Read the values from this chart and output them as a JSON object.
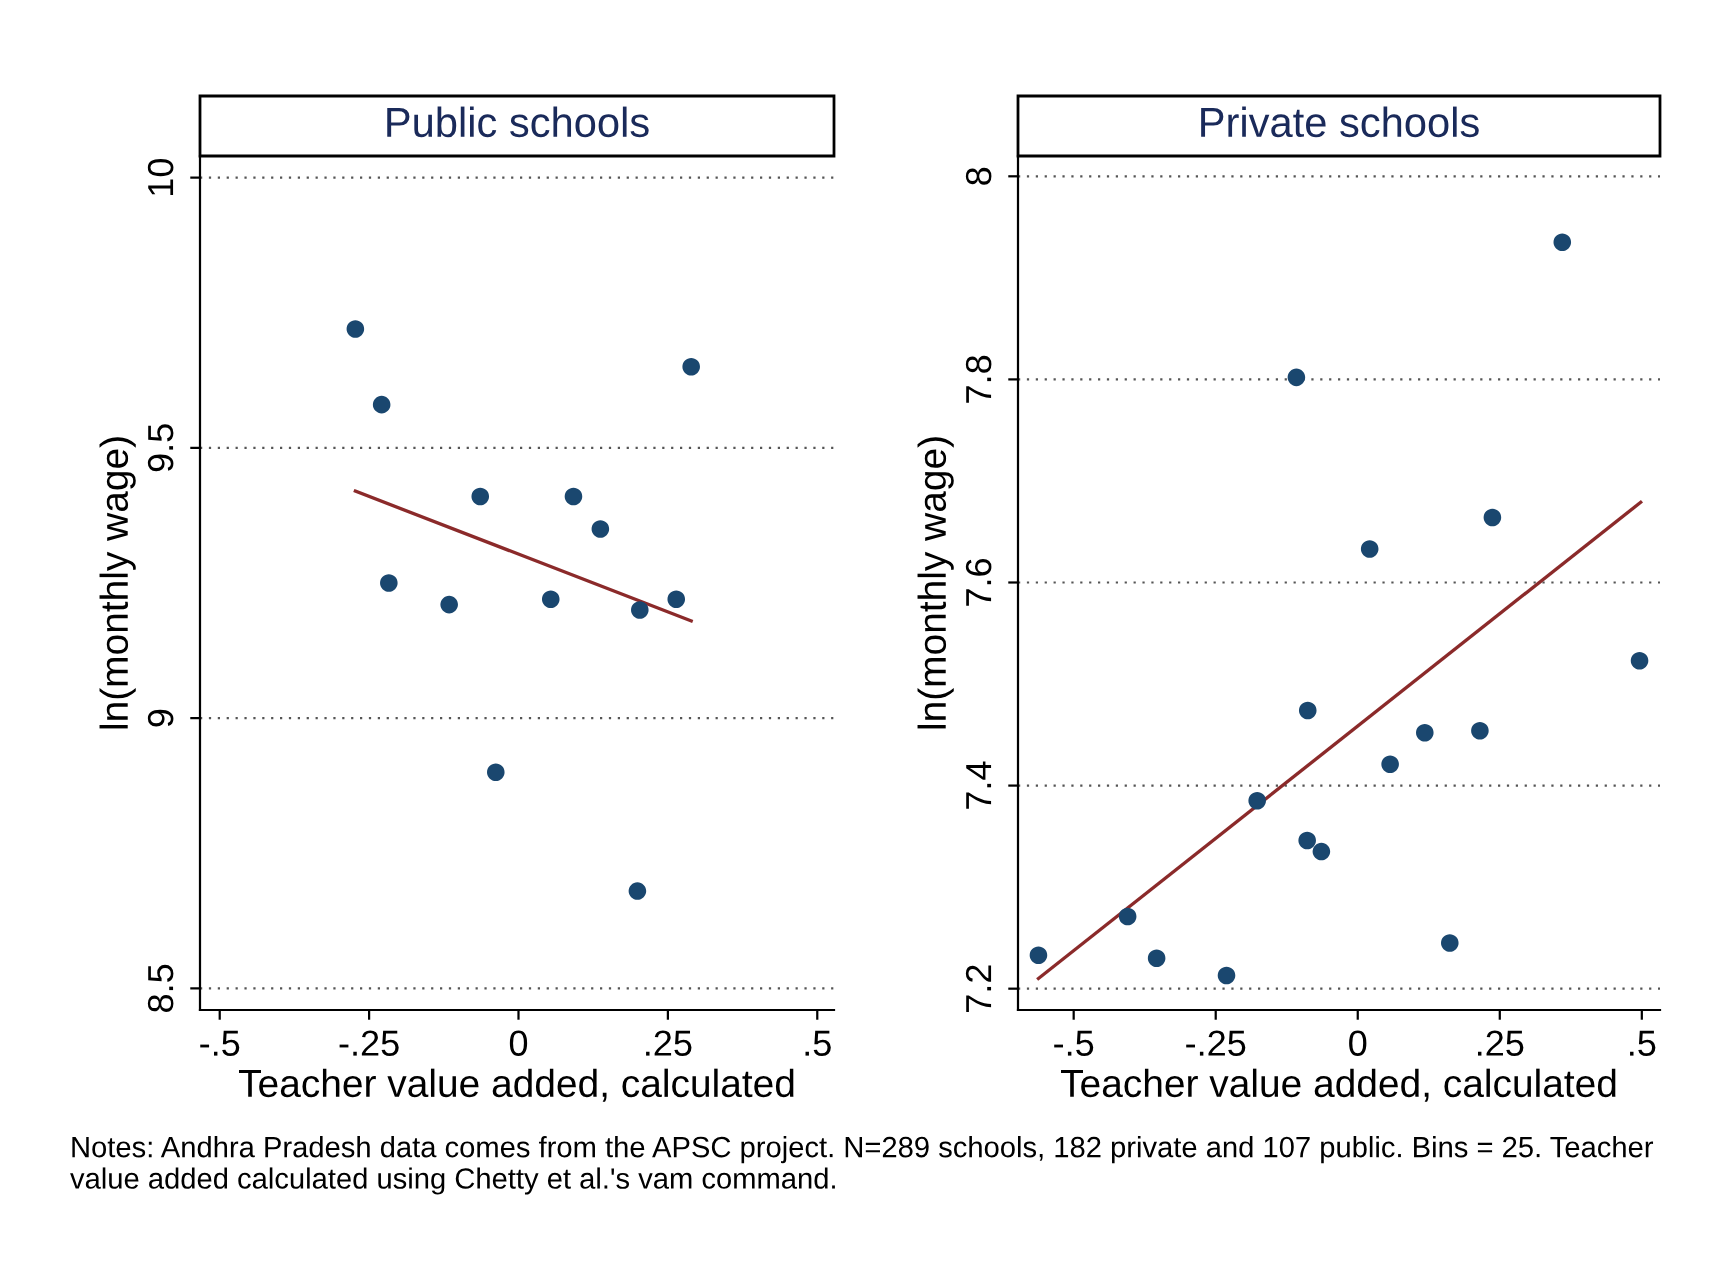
{
  "chart_data": [
    {
      "type": "scatter",
      "title": "Public schools",
      "xlabel": "Teacher value added, calculated",
      "ylabel": "ln(monthly wage)",
      "xlim": [
        -0.533,
        0.528
      ],
      "ylim": [
        8.46,
        10.04
      ],
      "xticks": [
        {
          "value": -0.5,
          "label": "-.5"
        },
        {
          "value": -0.25,
          "label": "-.25"
        },
        0,
        {
          "value": 0.25,
          "label": ".25"
        },
        {
          "value": 0.5,
          "label": ".5"
        }
      ],
      "yticks": [
        8.5,
        9,
        9.5,
        10
      ],
      "grid": "y",
      "annotations": [
        "Notes: Andhra Pradesh data comes from the APSC project. N=289 schools, 182 private and 107 public. Bins = 25. Teacher value added calculated using Chetty et al.'s vam command."
      ],
      "series": [
        {
          "marker": "circle",
          "color": "#1a476f",
          "x": [
            -0.273,
            -0.229,
            -0.217,
            -0.116,
            -0.064,
            -0.038,
            0.054,
            0.092,
            0.137,
            0.203,
            0.199,
            0.264,
            0.289
          ],
          "values": [
            9.72,
            9.58,
            9.25,
            9.21,
            9.41,
            8.9,
            9.22,
            9.41,
            9.35,
            9.2,
            8.68,
            9.22,
            9.65
          ]
        },
        {
          "type": "line",
          "color": "#8b2a2a",
          "x": [
            -0.273,
            0.289
          ],
          "values": [
            9.42,
            9.18
          ]
        }
      ]
    },
    {
      "type": "scatter",
      "title": "Private schools",
      "xlabel": "Teacher value added, calculated",
      "ylabel": "ln(monthly wage)",
      "xlim": [
        -0.598,
        0.532
      ],
      "ylim": [
        7.179,
        8.02
      ],
      "xticks": [
        {
          "value": -0.5,
          "label": "-.5"
        },
        {
          "value": -0.25,
          "label": "-.25"
        },
        0,
        {
          "value": 0.25,
          "label": ".25"
        },
        {
          "value": 0.5,
          "label": ".5"
        }
      ],
      "yticks": [
        7.2,
        7.4,
        7.6,
        7.8,
        8
      ],
      "grid": "y",
      "series": [
        {
          "marker": "circle",
          "color": "#1a476f",
          "x": [
            -0.562,
            -0.405,
            -0.354,
            -0.231,
            -0.177,
            -0.108,
            -0.088,
            -0.089,
            -0.064,
            0.021,
            0.057,
            0.118,
            0.162,
            0.215,
            0.237,
            0.36,
            0.496
          ],
          "values": [
            7.233,
            7.271,
            7.23,
            7.213,
            7.385,
            7.802,
            7.474,
            7.346,
            7.335,
            7.633,
            7.421,
            7.452,
            7.245,
            7.454,
            7.664,
            7.935,
            7.523
          ]
        },
        {
          "type": "line",
          "color": "#8b2a2a",
          "x": [
            -0.562,
            0.498
          ],
          "values": [
            7.21,
            7.679
          ]
        }
      ]
    }
  ]
}
